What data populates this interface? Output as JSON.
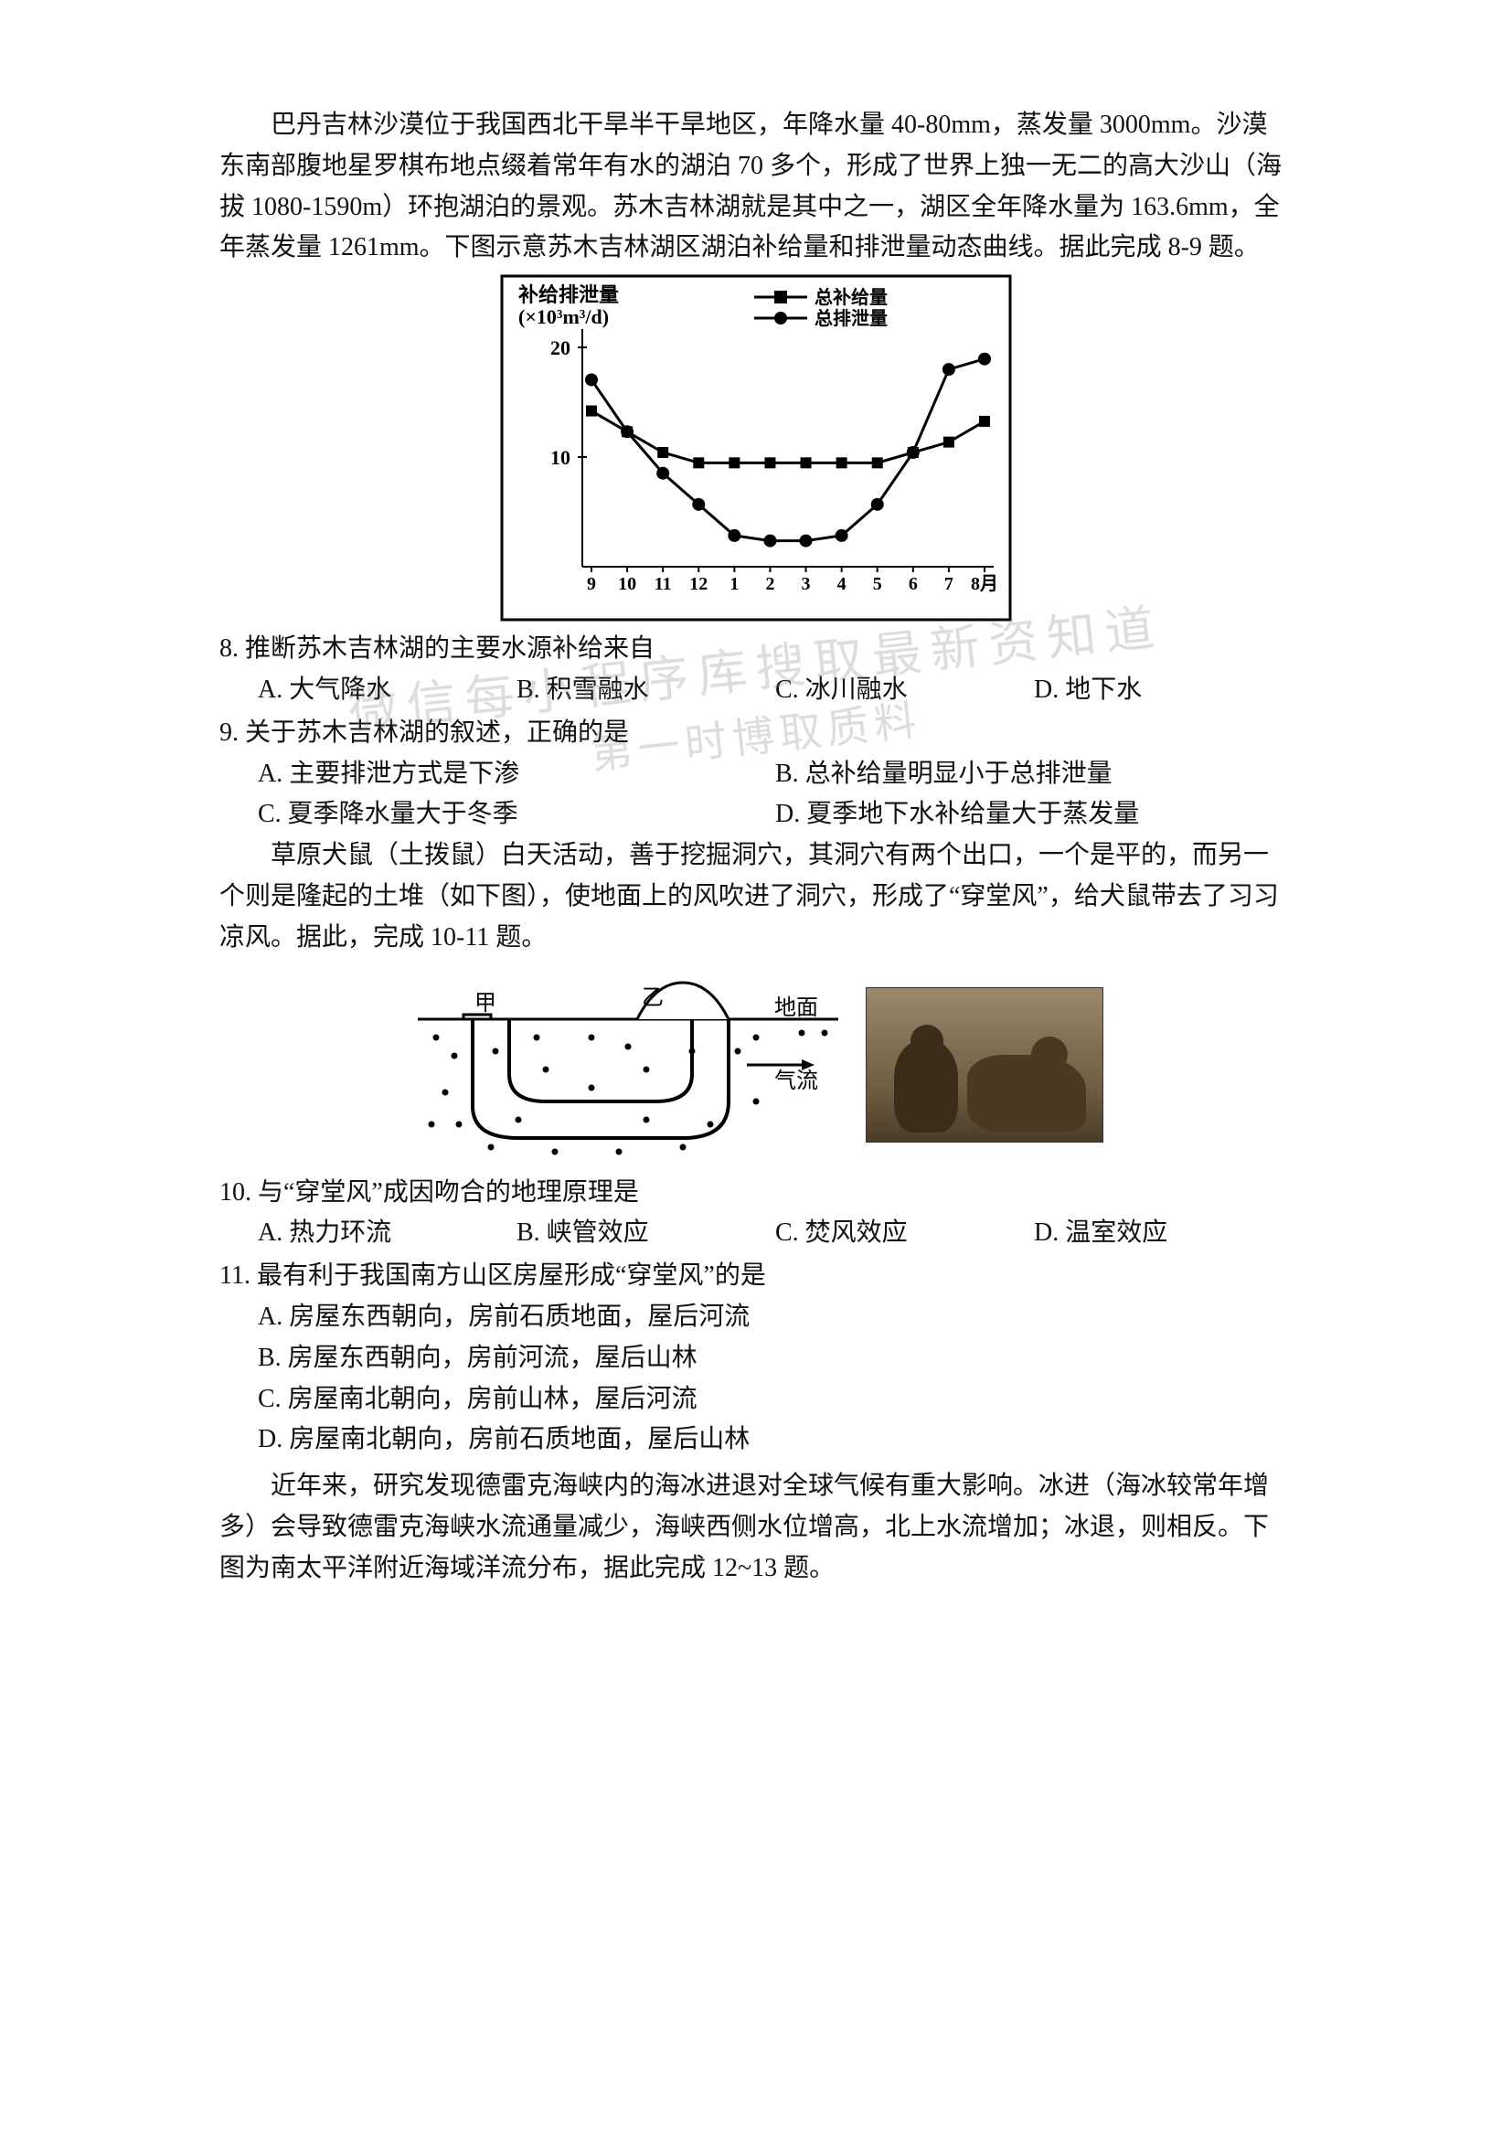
{
  "intro": "巴丹吉林沙漠位于我国西北干旱半干旱地区，年降水量 40-80mm，蒸发量 3000mm。沙漠东南部腹地星罗棋布地点缀着常年有水的湖泊 70 多个，形成了世界上独一无二的高大沙山（海拔 1080-1590m）环抱湖泊的景观。苏木吉林湖就是其中之一，湖区全年降水量为 163.6mm，全年蒸发量 1261mm。下图示意苏木吉林湖区湖泊补给量和排泄量动态曲线。据此完成 8-9 题。",
  "chart": {
    "type": "line",
    "y_axis_title_line1": "补给排泄量",
    "y_axis_title_line2": "(×10³m³/d)",
    "legend_recharge": "总补给量",
    "legend_discharge": "总排泄量",
    "x_labels": [
      "9",
      "10",
      "11",
      "12",
      "1",
      "2",
      "3",
      "4",
      "5",
      "6",
      "7",
      "8月"
    ],
    "ylim": [
      0,
      22
    ],
    "yticks": [
      10,
      20
    ],
    "recharge_values": [
      15,
      13,
      11,
      10,
      10,
      10,
      10,
      10,
      10,
      11,
      12,
      14
    ],
    "discharge_values": [
      18,
      13,
      9,
      6,
      3,
      2.5,
      2.5,
      3,
      6,
      11,
      19,
      20
    ],
    "recharge_marker": "square",
    "discharge_marker": "circle",
    "line_color": "#000000",
    "background_color": "#ffffff",
    "border_color": "#000000",
    "axis_fontsize": 18,
    "title_fontsize": 20
  },
  "q8": {
    "stem": "8. 推断苏木吉林湖的主要水源补给来自",
    "A": "A. 大气降水",
    "B": "B. 积雪融水",
    "C": "C. 冰川融水",
    "D": "D. 地下水"
  },
  "q9": {
    "stem": "9. 关于苏木吉林湖的叙述，正确的是",
    "A": "A. 主要排泄方式是下渗",
    "B": "B. 总补给量明显小于总排泄量",
    "C": "C. 夏季降水量大于冬季",
    "D": "D. 夏季地下水补给量大于蒸发量"
  },
  "intro2": "草原犬鼠（土拨鼠）白天活动，善于挖掘洞穴，其洞穴有两个出口，一个是平的，而另一个则是隆起的土堆（如下图），使地面上的风吹进了洞穴，形成了“穿堂风”，给犬鼠带去了习习凉风。据此，完成 10-11 题。",
  "burrow": {
    "label_jia": "甲",
    "label_yi": "乙",
    "label_ground": "地面",
    "label_airflow": "气流",
    "line_color": "#000000",
    "dot_color": "#000000"
  },
  "q10": {
    "stem": "10. 与“穿堂风”成因吻合的地理原理是",
    "A": "A. 热力环流",
    "B": "B. 峡管效应",
    "C": "C. 焚风效应",
    "D": "D. 温室效应"
  },
  "q11": {
    "stem": "11. 最有利于我国南方山区房屋形成“穿堂风”的是",
    "A": "A. 房屋东西朝向，房前石质地面，屋后河流",
    "B": "B. 房屋东西朝向，房前河流，屋后山林",
    "C": "C. 房屋南北朝向，房前山林，屋后河流",
    "D": "D. 房屋南北朝向，房前石质地面，屋后山林"
  },
  "intro3": "近年来，研究发现德雷克海峡内的海冰进退对全球气候有重大影响。冰进（海冰较常年增多）会导致德雷克海峡水流通量减少，海峡西侧水位增高，北上水流增加；冰退，则相反。下图为南太平洋附近海域洋流分布，据此完成 12~13 题。",
  "watermark": {
    "line1": "微信每小程序库搜取最新资知道",
    "line2": "第一时博取质料"
  }
}
